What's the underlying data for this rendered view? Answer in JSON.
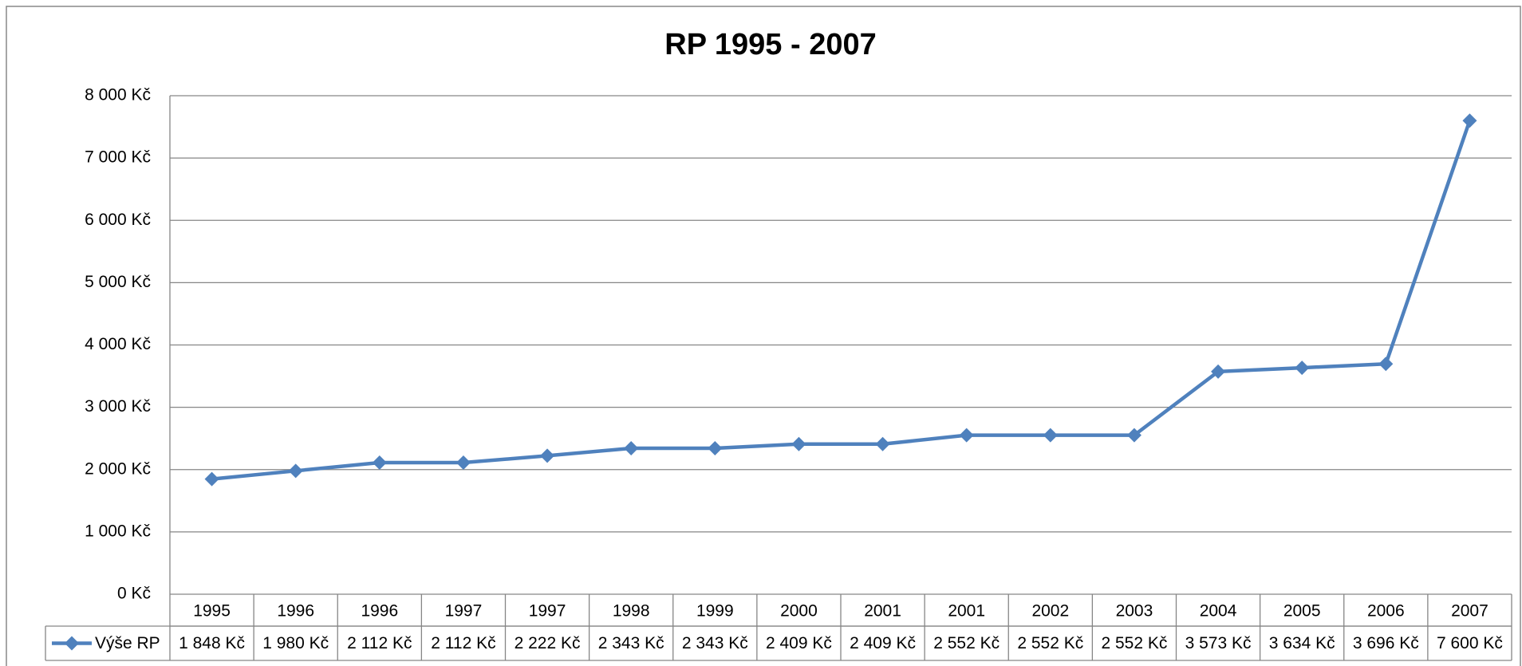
{
  "chart_data": {
    "type": "line",
    "title": "RP 1995 - 2007",
    "categories": [
      "1995",
      "1996",
      "1996",
      "1997",
      "1997",
      "1998",
      "1999",
      "2000",
      "2001",
      "2001",
      "2002",
      "2003",
      "2004",
      "2005",
      "2006",
      "2007"
    ],
    "series": [
      {
        "name": "Výše RP",
        "color": "#4f81bd",
        "values": [
          1848,
          1980,
          2112,
          2112,
          2222,
          2343,
          2343,
          2409,
          2409,
          2552,
          2552,
          2552,
          3573,
          3634,
          3696,
          7600
        ],
        "value_labels": [
          "1 848 Kč",
          "1 980 Kč",
          "2 112 Kč",
          "2 112 Kč",
          "2 222 Kč",
          "2 343 Kč",
          "2 343 Kč",
          "2 409 Kč",
          "2 409 Kč",
          "2 552 Kč",
          "2 552 Kč",
          "2 552 Kč",
          "3 573 Kč",
          "3 634 Kč",
          "3 696 Kč",
          "7 600 Kč"
        ]
      }
    ],
    "ylim": [
      0,
      8000
    ],
    "yticks": [
      {
        "value": 0,
        "label": "0 Kč"
      },
      {
        "value": 1000,
        "label": "1 000 Kč"
      },
      {
        "value": 2000,
        "label": "2 000 Kč"
      },
      {
        "value": 3000,
        "label": "3 000 Kč"
      },
      {
        "value": 4000,
        "label": "4 000 Kč"
      },
      {
        "value": 5000,
        "label": "5 000 Kč"
      },
      {
        "value": 6000,
        "label": "6 000 Kč"
      },
      {
        "value": 7000,
        "label": "7 000 Kč"
      },
      {
        "value": 8000,
        "label": "8 000 Kč"
      }
    ],
    "grid": true
  }
}
